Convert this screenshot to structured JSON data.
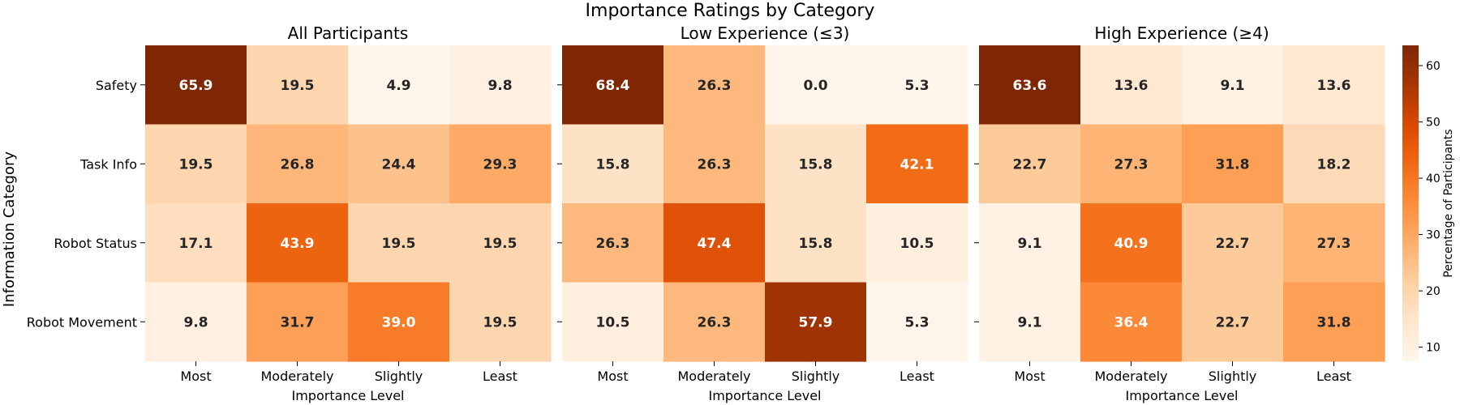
{
  "chart_data": {
    "type": "heatmap",
    "title": "Importance Ratings by Category",
    "ylabel": "Information Category",
    "rows": [
      "Safety",
      "Task Info",
      "Robot Status",
      "Robot Movement"
    ],
    "columns": [
      "Most",
      "Moderately",
      "Slightly",
      "Least"
    ],
    "panels": [
      {
        "title": "All Participants",
        "xlabel": "Importance Level",
        "values": [
          [
            65.9,
            19.5,
            4.9,
            9.8
          ],
          [
            19.5,
            26.8,
            24.4,
            29.3
          ],
          [
            17.1,
            43.9,
            19.5,
            19.5
          ],
          [
            9.8,
            31.7,
            39.0,
            19.5
          ]
        ]
      },
      {
        "title": "Low Experience (≤3)",
        "xlabel": "Importance Level",
        "values": [
          [
            68.4,
            26.3,
            0.0,
            5.3
          ],
          [
            15.8,
            26.3,
            15.8,
            42.1
          ],
          [
            26.3,
            47.4,
            15.8,
            10.5
          ],
          [
            10.5,
            26.3,
            57.9,
            5.3
          ]
        ]
      },
      {
        "title": "High Experience (≥4)",
        "xlabel": "Importance Level",
        "values": [
          [
            63.6,
            13.6,
            9.1,
            13.6
          ],
          [
            22.7,
            27.3,
            31.8,
            18.2
          ],
          [
            9.1,
            40.9,
            22.7,
            27.3
          ],
          [
            9.1,
            36.4,
            22.7,
            31.8
          ]
        ]
      }
    ],
    "colorbar": {
      "label": "Percentage of Participants",
      "vmin": 7.5,
      "vmax": 63.6,
      "ticks": [
        10,
        20,
        30,
        40,
        50,
        60
      ],
      "colormap": "Oranges"
    },
    "value_format": "0.1f"
  },
  "colors": {
    "cmap_low": "#fff5eb",
    "cmap_high": "#7f2704",
    "text_dark": "#262626",
    "text_light": "#ffffff"
  }
}
